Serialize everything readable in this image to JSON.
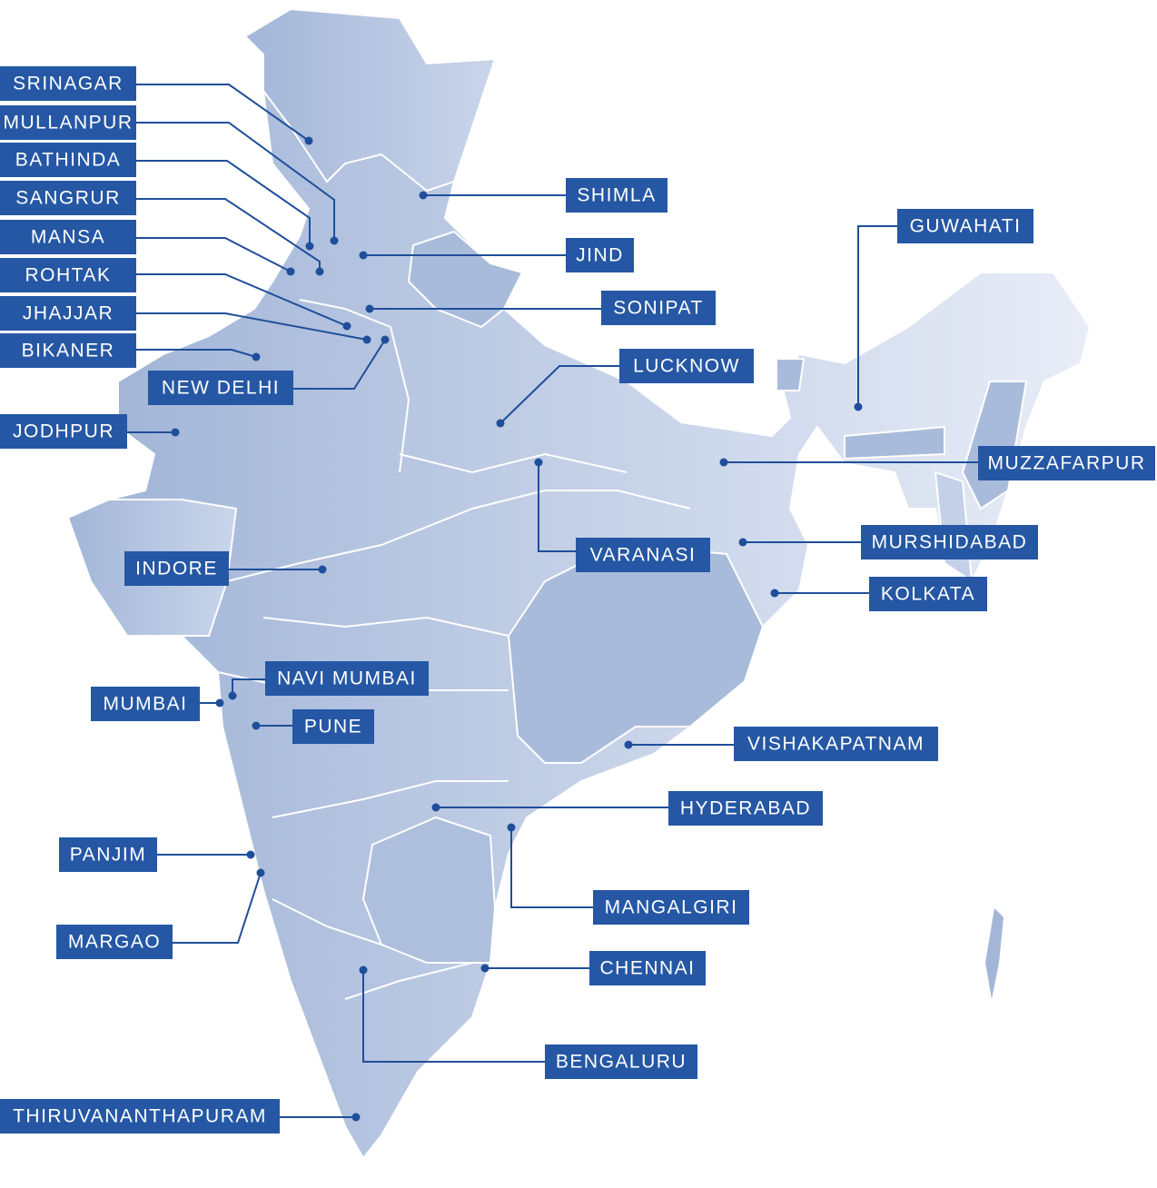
{
  "cities": [
    {
      "label": "SRINAGAR"
    },
    {
      "label": "MULLANPUR"
    },
    {
      "label": "BATHINDA"
    },
    {
      "label": "SANGRUR"
    },
    {
      "label": "MANSA"
    },
    {
      "label": "ROHTAK"
    },
    {
      "label": "JHAJJAR"
    },
    {
      "label": "BIKANER"
    },
    {
      "label": "NEW DELHI"
    },
    {
      "label": "JODHPUR"
    },
    {
      "label": "INDORE"
    },
    {
      "label": "MUMBAI"
    },
    {
      "label": "NAVI MUMBAI"
    },
    {
      "label": "PUNE"
    },
    {
      "label": "PANJIM"
    },
    {
      "label": "MARGAO"
    },
    {
      "label": "THIRUVANANTHAPURAM"
    },
    {
      "label": "SHIMLA"
    },
    {
      "label": "JIND"
    },
    {
      "label": "SONIPAT"
    },
    {
      "label": "LUCKNOW"
    },
    {
      "label": "VARANASI"
    },
    {
      "label": "GUWAHATI"
    },
    {
      "label": "MUZZAFARPUR"
    },
    {
      "label": "MURSHIDABAD"
    },
    {
      "label": "KOLKATA"
    },
    {
      "label": "VISHAKAPATNAM"
    },
    {
      "label": "HYDERABAD"
    },
    {
      "label": "MANGALGIRI"
    },
    {
      "label": "CHENNAI"
    },
    {
      "label": "BENGALURU"
    }
  ]
}
